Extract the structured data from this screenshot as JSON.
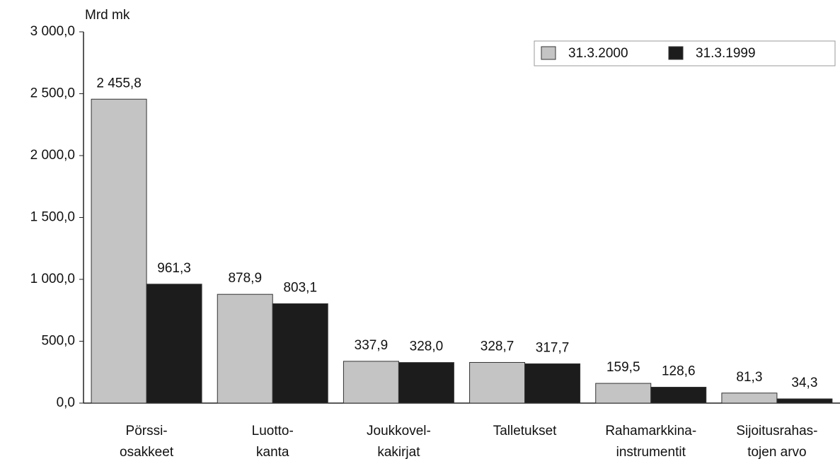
{
  "chart_data": {
    "type": "bar",
    "y_axis_label": "Mrd mk",
    "categories": [
      [
        "Pörssi-",
        "osakkeet"
      ],
      [
        "Luotto-",
        "kanta"
      ],
      [
        "Joukkovel-",
        "kakirjat"
      ],
      [
        "Talletukset"
      ],
      [
        "Rahamarkkina-",
        "instrumentit"
      ],
      [
        "Sijoitusrahas-",
        "tojen arvo"
      ]
    ],
    "series": [
      {
        "name": "31.3.2000",
        "color": "#c4c4c4",
        "values": [
          2455.8,
          878.9,
          337.9,
          328.7,
          159.5,
          81.3
        ],
        "value_labels": [
          "2 455,8",
          "878,9",
          "337,9",
          "328,7",
          "159,5",
          "81,3"
        ]
      },
      {
        "name": "31.3.1999",
        "color": "#1c1c1c",
        "values": [
          961.3,
          803.1,
          328.0,
          317.7,
          128.6,
          34.3
        ],
        "value_labels": [
          "961,3",
          "803,1",
          "328,0",
          "317,7",
          "128,6",
          "34,3"
        ]
      }
    ],
    "ylim": [
      0,
      3000
    ],
    "yticks": [
      {
        "value": 0,
        "label": "0,0"
      },
      {
        "value": 500,
        "label": "500,0"
      },
      {
        "value": 1000,
        "label": "1 000,0"
      },
      {
        "value": 1500,
        "label": "1 500,0"
      },
      {
        "value": 2000,
        "label": "2 000,0"
      },
      {
        "value": 2500,
        "label": "2 500,0"
      },
      {
        "value": 3000,
        "label": "3 000,0"
      }
    ],
    "legend": "upper right"
  }
}
